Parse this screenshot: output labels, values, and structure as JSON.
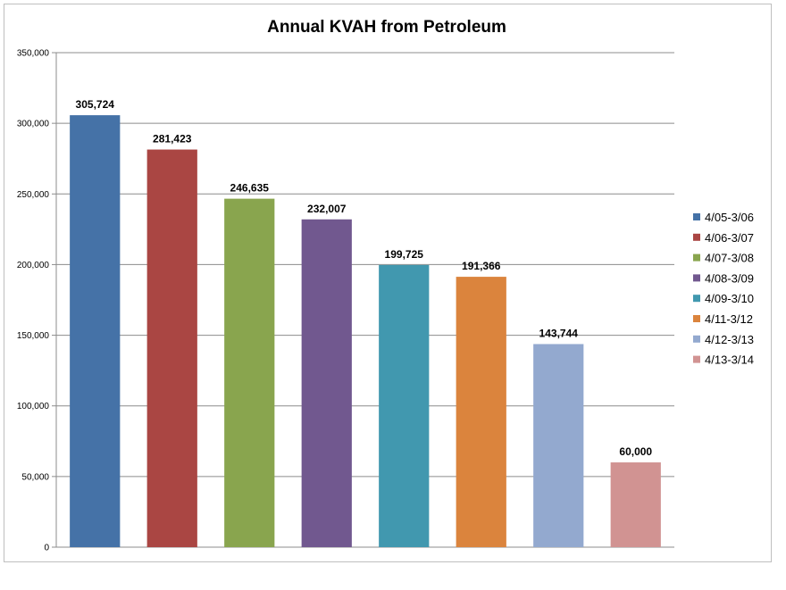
{
  "chart_data": {
    "type": "bar",
    "title": "Annual KVAH from Petroleum",
    "xlabel": "",
    "ylabel": "",
    "ylim": [
      0,
      350000
    ],
    "yticks": [
      0,
      50000,
      100000,
      150000,
      200000,
      250000,
      300000,
      350000
    ],
    "ytick_labels": [
      "0",
      "50,000",
      "100,000",
      "150,000",
      "200,000",
      "250,000",
      "300,000",
      "350,000"
    ],
    "grid": true,
    "legend_position": "right",
    "categories": [
      "4/05-3/06",
      "4/06-3/07",
      "4/07-3/08",
      "4/08-3/09",
      "4/09-3/10",
      "4/11-3/12",
      "4/12-3/13",
      "4/13-3/14"
    ],
    "values": [
      305724,
      281423,
      246635,
      232007,
      199725,
      191366,
      143744,
      60000
    ],
    "value_labels": [
      "305,724",
      "281,423",
      "246,635",
      "232,007",
      "199,725",
      "191,366",
      "143,744",
      "60,000"
    ],
    "colors": [
      "#4572a7",
      "#aa4643",
      "#89a54e",
      "#71588f",
      "#4198af",
      "#db843d",
      "#93a9cf",
      "#d19392"
    ]
  }
}
